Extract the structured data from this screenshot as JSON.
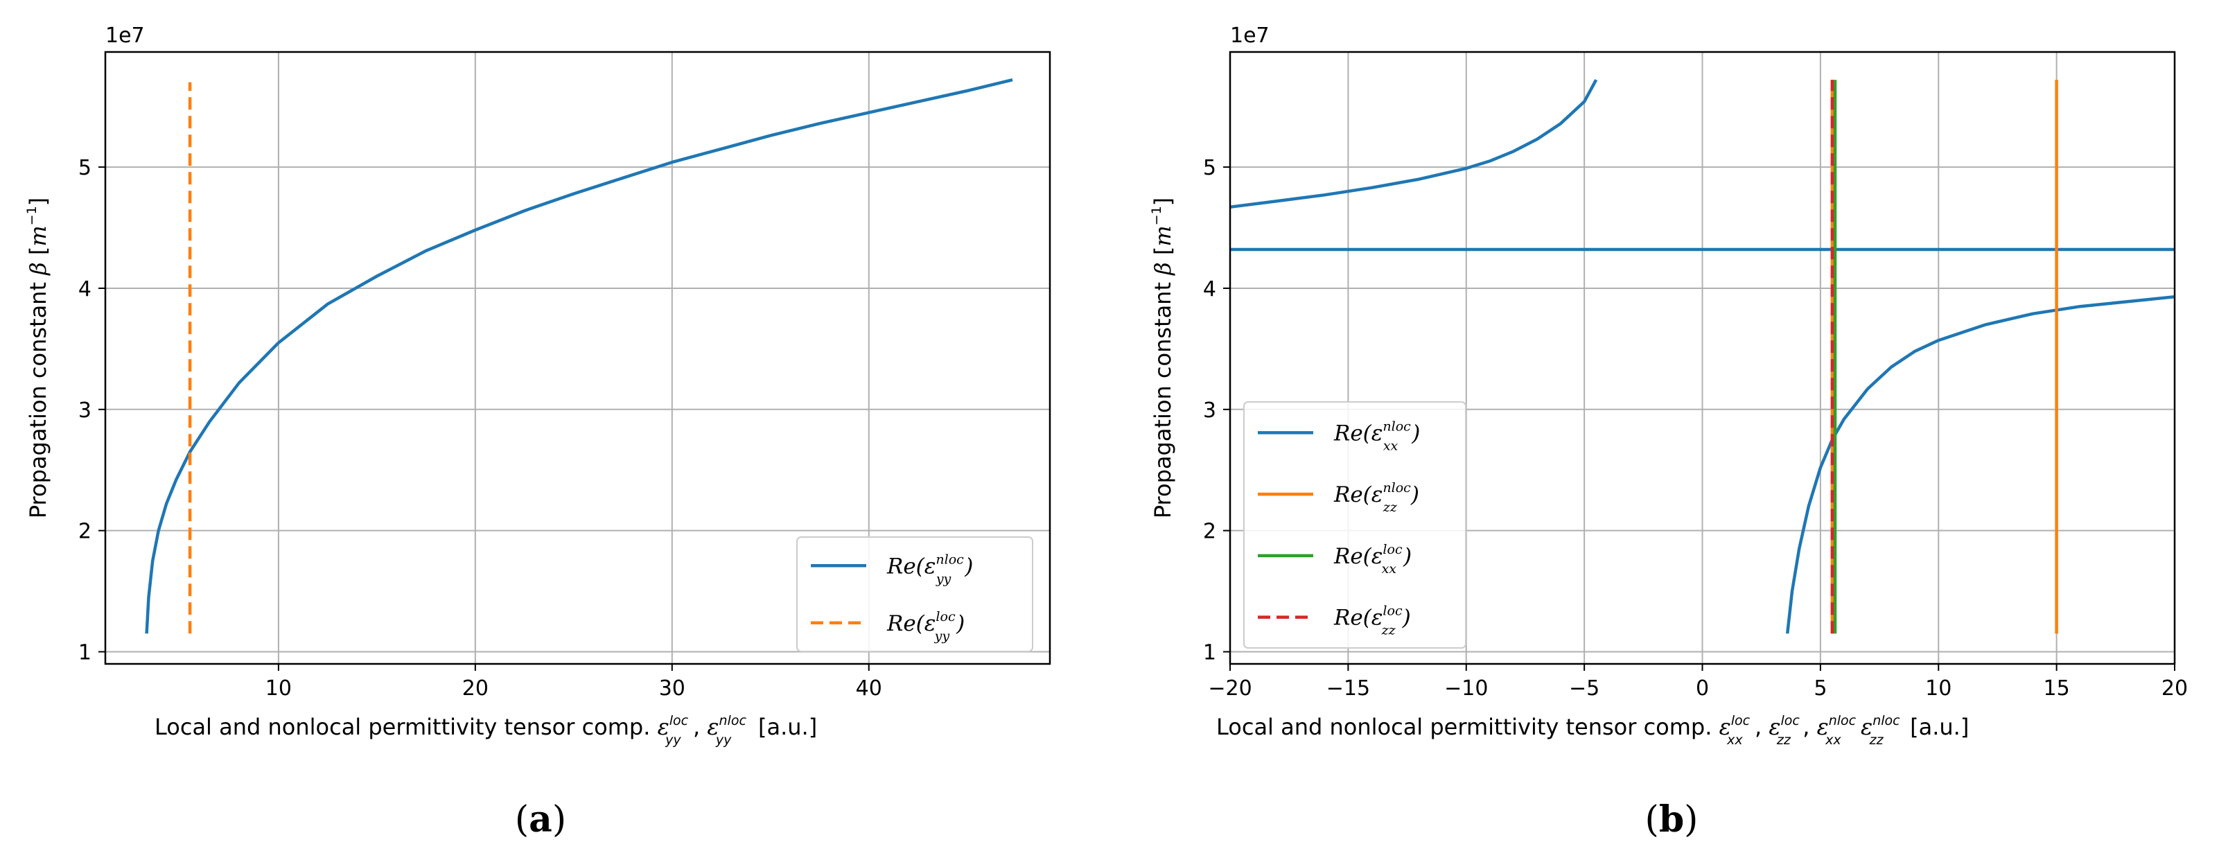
{
  "chart_data": [
    {
      "type": "line",
      "panel_label": "(a)",
      "y_multiplier": "1e7",
      "ylabel": {
        "text": "Propagation constant",
        "symbol": "β",
        "unit": "[m",
        "exp": "−1",
        "close": "]"
      },
      "xlabel": {
        "prefix": "Local and nonlocal permittivity tensor comp.",
        "t1_sup": "loc",
        "t1_sub": "yy",
        "t2_sup": "nloc",
        "t2_sub": "yy",
        "suffix": "[a.u.]"
      },
      "xlim": [
        1.2,
        49.2
      ],
      "ylim": [
        0.9,
        5.95
      ],
      "xticks": [
        10,
        20,
        30,
        40
      ],
      "yticks": [
        1,
        2,
        3,
        4,
        5
      ],
      "grid": true,
      "legend_position": "lower-right",
      "series": [
        {
          "name": "Re(ε_yy^nloc)",
          "label_base": "Re(ε",
          "label_sup": "nloc",
          "label_sub": "yy",
          "label_end": ")",
          "style": "solid",
          "color": "#1f77b4",
          "x": [
            3.3,
            3.4,
            3.6,
            3.9,
            4.3,
            4.8,
            5.5,
            6.5,
            8.0,
            10.0,
            12.5,
            15.0,
            17.5,
            20.0,
            22.5,
            25.0,
            27.5,
            30.0,
            32.5,
            35.0,
            37.5,
            40.0,
            42.5,
            45.0,
            47.3
          ],
          "y": [
            1.15,
            1.45,
            1.75,
            2.0,
            2.22,
            2.42,
            2.65,
            2.9,
            3.22,
            3.55,
            3.87,
            4.1,
            4.31,
            4.48,
            4.64,
            4.78,
            4.91,
            5.04,
            5.15,
            5.26,
            5.36,
            5.45,
            5.54,
            5.63,
            5.72
          ]
        },
        {
          "name": "Re(ε_yy^loc)",
          "label_base": "Re(ε",
          "label_sup": "loc",
          "label_sub": "yy",
          "label_end": ")",
          "style": "dashed",
          "color": "#ff7f0e",
          "x": [
            5.5,
            5.5
          ],
          "y": [
            1.15,
            5.7
          ]
        }
      ]
    },
    {
      "type": "line",
      "panel_label": "(b)",
      "y_multiplier": "1e7",
      "ylabel": {
        "text": "Propagation constant",
        "symbol": "β",
        "unit": "[m",
        "exp": "−1",
        "close": "]"
      },
      "xlabel": {
        "prefix": "Local and nonlocal permittivity tensor comp.",
        "terms": [
          {
            "sup": "loc",
            "sub": "xx"
          },
          {
            "sup": "loc",
            "sub": "zz"
          },
          {
            "sup": "nloc",
            "sub": "xx"
          },
          {
            "sup": "nloc",
            "sub": "zz"
          }
        ],
        "suffix": "[a.u.]"
      },
      "xlim": [
        -20,
        20
      ],
      "ylim": [
        0.9,
        5.95
      ],
      "xticks": [
        -20,
        -15,
        -10,
        -5,
        0,
        5,
        10,
        15,
        20
      ],
      "yticks": [
        1,
        2,
        3,
        4,
        5
      ],
      "grid": true,
      "legend_position": "lower-left",
      "series": [
        {
          "name": "Re(ε_xx^nloc)",
          "label_base": "Re(ε",
          "label_sup": "nloc",
          "label_sub": "xx",
          "label_end": ")",
          "style": "solid",
          "color": "#1f77b4",
          "segments": [
            {
              "x": [
                -20,
                -18,
                -16,
                -14,
                -12,
                -10,
                -9,
                -8,
                -7,
                -6,
                -5,
                -4.5
              ],
              "y": [
                4.67,
                4.72,
                4.77,
                4.83,
                4.9,
                4.99,
                5.05,
                5.13,
                5.23,
                5.36,
                5.54,
                5.72
              ]
            },
            {
              "x": [
                -20,
                20
              ],
              "y": [
                4.32,
                4.32
              ]
            },
            {
              "x": [
                3.6,
                3.8,
                4.1,
                4.5,
                5.0,
                5.5,
                6.0,
                7.0,
                8.0,
                9.0,
                10.0,
                12.0,
                14.0,
                16.0,
                18.0,
                20.0
              ],
              "y": [
                1.15,
                1.5,
                1.85,
                2.2,
                2.52,
                2.75,
                2.92,
                3.17,
                3.35,
                3.48,
                3.57,
                3.7,
                3.79,
                3.85,
                3.89,
                3.93
              ]
            }
          ]
        },
        {
          "name": "Re(ε_zz^nloc)",
          "label_base": "Re(ε",
          "label_sup": "nloc",
          "label_sub": "zz",
          "label_end": ")",
          "style": "solid",
          "color": "#ff7f0e",
          "segments": [
            {
              "x": [
                15,
                15
              ],
              "y": [
                1.15,
                5.72
              ]
            },
            {
              "x": [
                5.5,
                5.5
              ],
              "y": [
                1.15,
                5.72
              ]
            }
          ]
        },
        {
          "name": "Re(ε_xx^loc)",
          "label_base": "Re(ε",
          "label_sup": "loc",
          "label_sub": "xx",
          "label_end": ")",
          "style": "solid",
          "color": "#2ca02c",
          "segments": [
            {
              "x": [
                5.62,
                5.62
              ],
              "y": [
                1.15,
                5.72
              ]
            }
          ]
        },
        {
          "name": "Re(ε_zz^loc)",
          "label_base": "Re(ε",
          "label_sup": "loc",
          "label_sub": "zz",
          "label_end": ")",
          "style": "dashed",
          "color": "#d62728",
          "segments": [
            {
              "x": [
                5.5,
                5.5
              ],
              "y": [
                1.15,
                5.72
              ]
            }
          ]
        }
      ]
    }
  ]
}
